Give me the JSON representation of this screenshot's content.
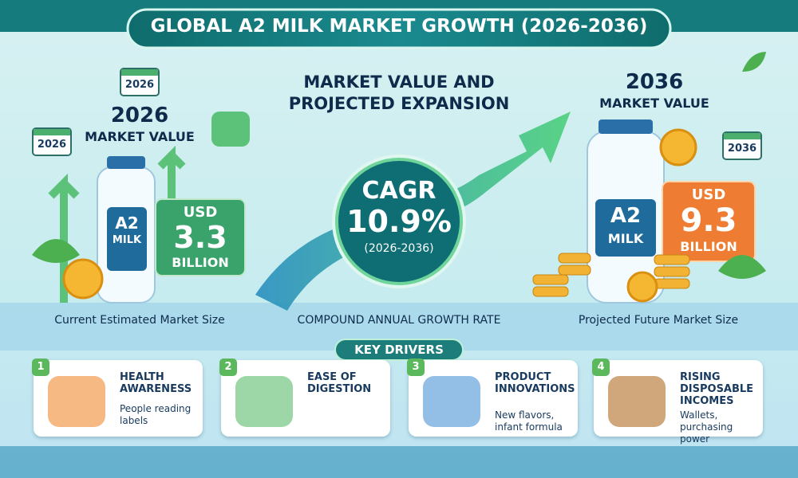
{
  "title": "GLOBAL A2 MILK MARKET GROWTH (2026-2036)",
  "left": {
    "calendar_labels": [
      "2026",
      "2026"
    ],
    "year": "2026",
    "heading": "MARKET VALUE",
    "bottle": [
      "A2",
      "MILK"
    ],
    "currency": "USD",
    "amount": "3.3",
    "unit": "BILLION",
    "caption": "Current Estimated Market Size"
  },
  "center": {
    "heading": "MARKET VALUE AND PROJECTED EXPANSION",
    "label": "CAGR",
    "rate": "10.9%",
    "period": "(2026-2036)",
    "caption": "COMPOUND ANNUAL GROWTH RATE"
  },
  "right": {
    "calendar_label": "2036",
    "year": "2036",
    "heading": "MARKET VALUE",
    "bottle": [
      "A2",
      "MILK"
    ],
    "currency": "USD",
    "amount": "9.3",
    "unit": "BILLION",
    "caption": "Projected Future Market Size"
  },
  "drivers": {
    "title": "KEY DRIVERS",
    "items": [
      {
        "number": "1",
        "title": "HEALTH AWARENESS",
        "text": "People reading labels"
      },
      {
        "number": "2",
        "title": "EASE OF DIGESTION",
        "text": ""
      },
      {
        "number": "3",
        "title": "PRODUCT INNOVATIONS",
        "text": "New flavors, infant formula"
      },
      {
        "number": "4",
        "title": "RISING DISPOSABLE INCOMES",
        "text": "Wallets, purchasing power"
      }
    ]
  }
}
